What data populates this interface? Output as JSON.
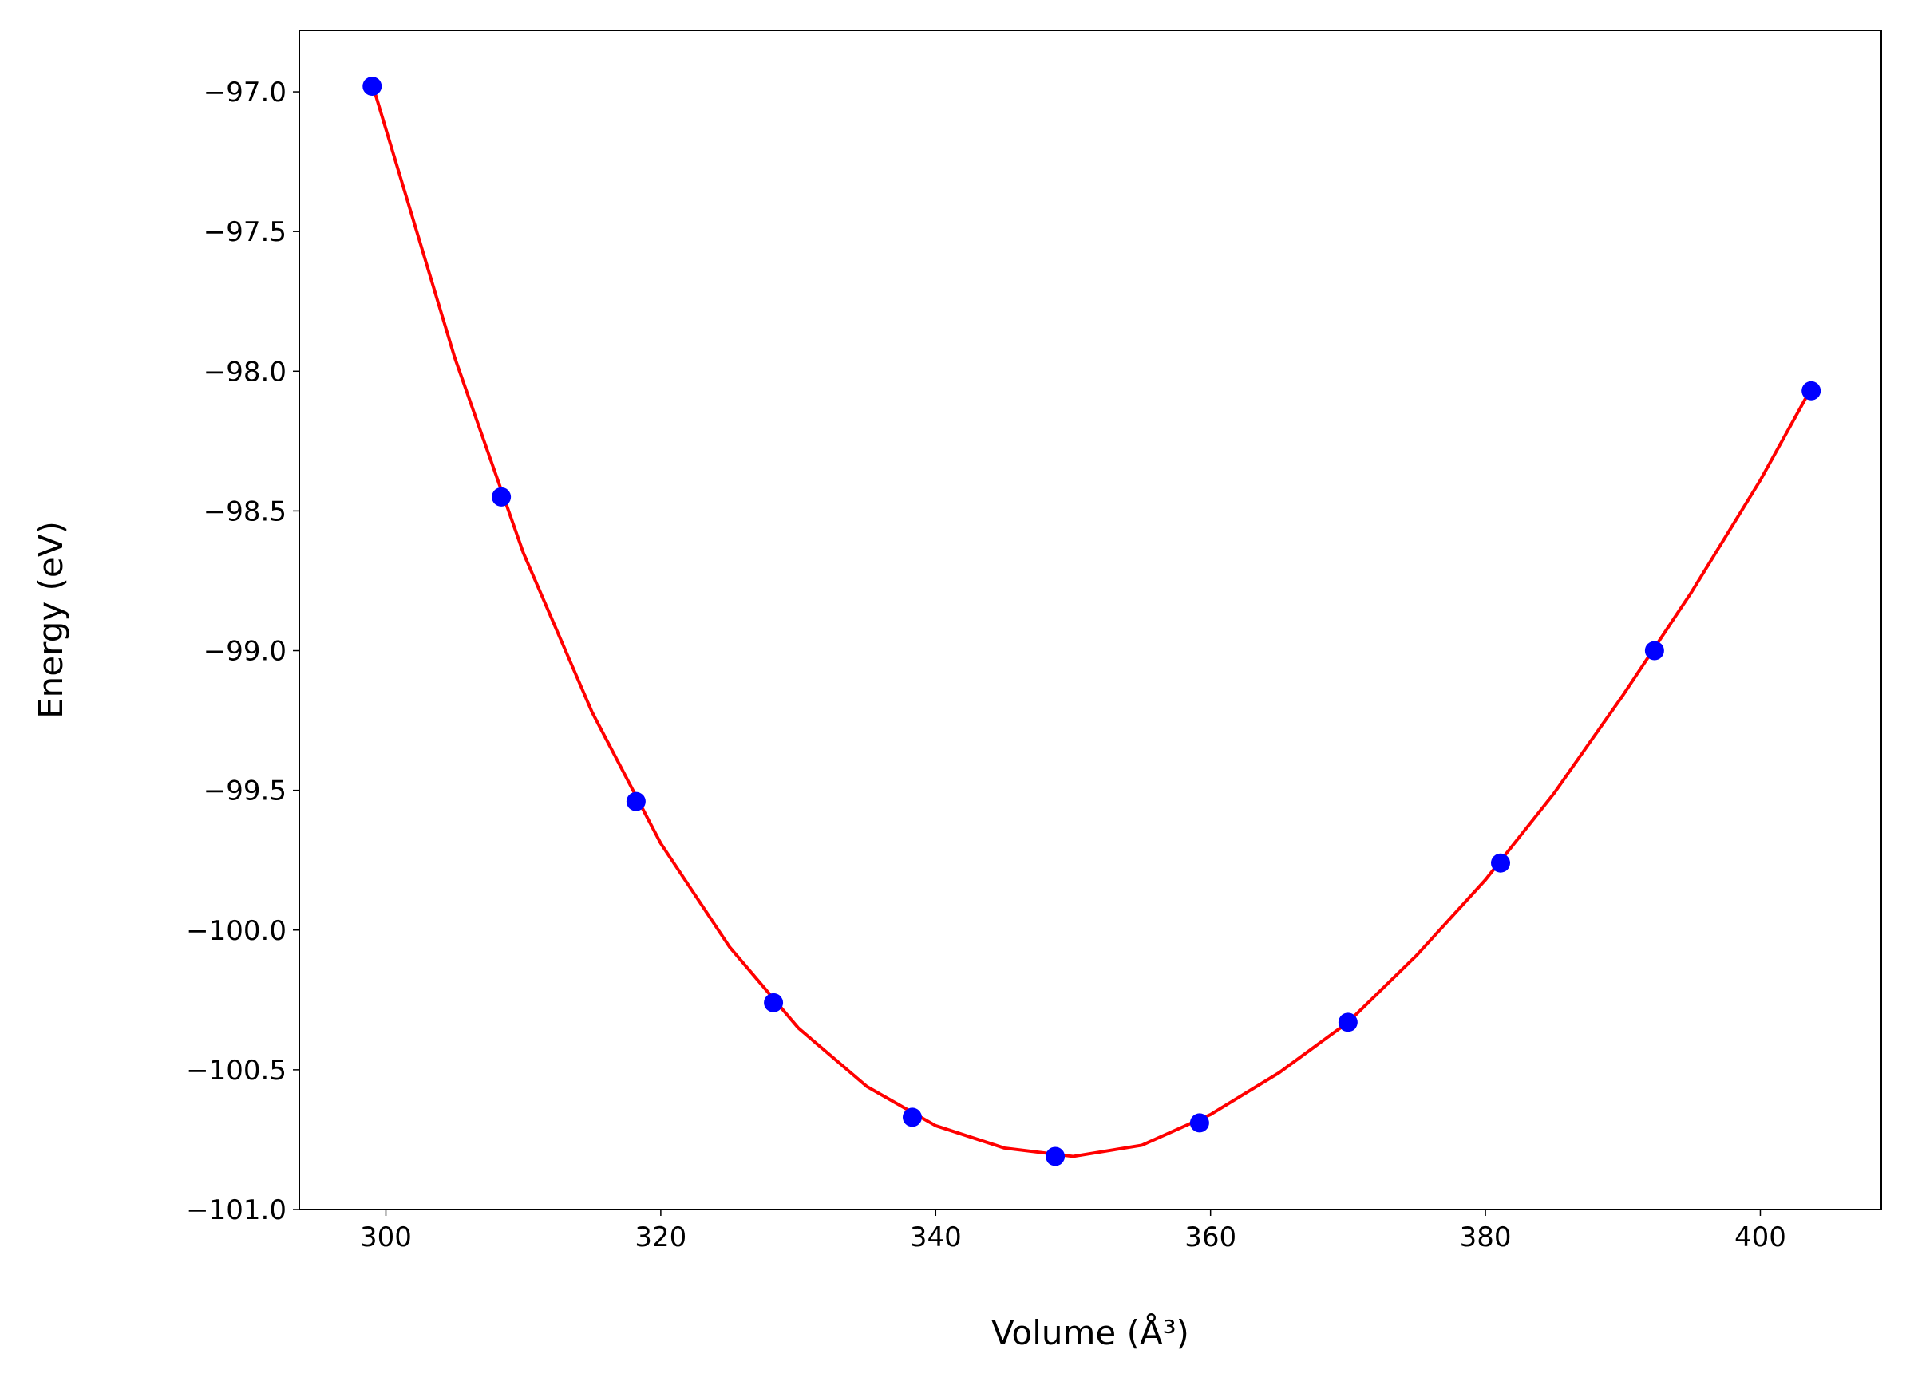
{
  "chart_data": {
    "type": "scatter",
    "x_label": "Volume (Å³)",
    "y_label": "Energy (eV)",
    "xlim": [
      293.7,
      408.8
    ],
    "ylim": [
      -101.0,
      -96.78
    ],
    "xticks": [
      300,
      320,
      340,
      360,
      380,
      400
    ],
    "yticks": [
      {
        "value": -97.0,
        "label": "−97.0"
      },
      {
        "value": -97.5,
        "label": "−97.5"
      },
      {
        "value": -98.0,
        "label": "−98.0"
      },
      {
        "value": -98.5,
        "label": "−98.5"
      },
      {
        "value": -99.0,
        "label": "−99.0"
      },
      {
        "value": -99.5,
        "label": "−99.5"
      },
      {
        "value": -100.0,
        "label": "−100.0"
      },
      {
        "value": -100.5,
        "label": "−100.5"
      },
      {
        "value": -101.0,
        "label": "−101.0"
      }
    ],
    "grid": false,
    "series": [
      {
        "type": "line",
        "color": "#ff0000",
        "x": [
          299,
          305,
          310,
          315,
          320,
          325,
          330,
          335,
          340,
          345,
          350,
          355,
          360,
          365,
          370,
          375,
          380,
          385,
          390,
          395,
          400,
          403.6
        ],
        "values": [
          -96.97,
          -97.95,
          -98.65,
          -99.22,
          -99.69,
          -100.06,
          -100.35,
          -100.56,
          -100.7,
          -100.78,
          -100.81,
          -100.77,
          -100.66,
          -100.51,
          -100.33,
          -100.09,
          -99.82,
          -99.51,
          -99.16,
          -98.79,
          -98.39,
          -98.07
        ]
      },
      {
        "type": "scatter",
        "color": "#0000ff",
        "x": [
          299.0,
          308.4,
          318.2,
          328.2,
          338.3,
          348.7,
          359.2,
          370.0,
          381.1,
          392.3,
          403.7
        ],
        "values": [
          -96.98,
          -98.45,
          -99.54,
          -100.26,
          -100.67,
          -100.81,
          -100.69,
          -100.33,
          -99.76,
          -99.0,
          -98.07
        ]
      }
    ]
  }
}
